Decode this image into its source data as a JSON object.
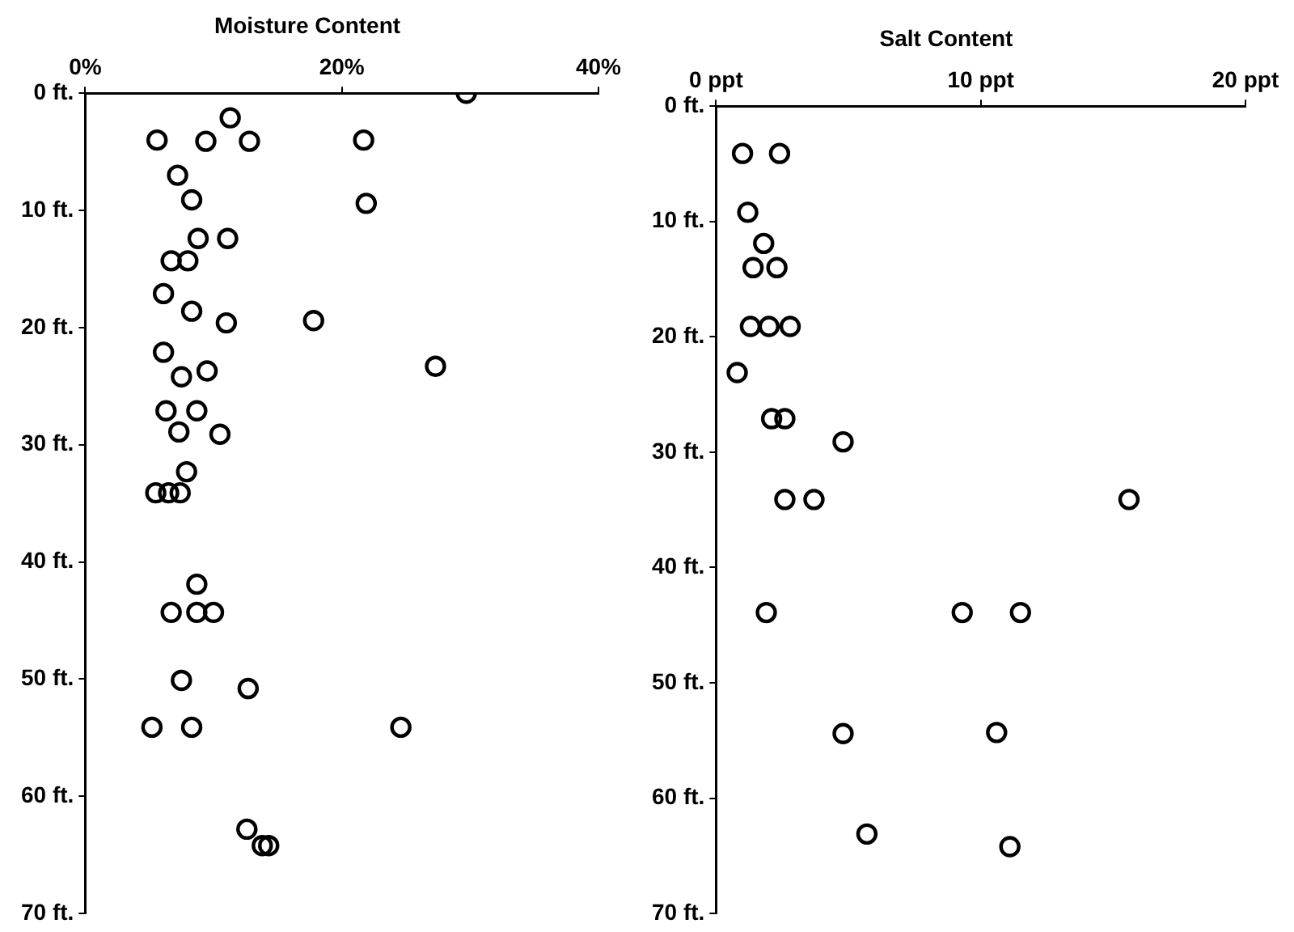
{
  "chart_data": [
    {
      "type": "scatter",
      "title": "Moisture Content",
      "marker": "circle",
      "color": "#000000",
      "grid": false,
      "x": [
        29.7,
        11.3,
        5.6,
        9.4,
        12.8,
        21.7,
        7.2,
        8.3,
        21.9,
        8.8,
        11.1,
        6.7,
        8.0,
        6.1,
        8.3,
        11.0,
        17.8,
        6.1,
        9.5,
        7.5,
        27.3,
        6.3,
        8.7,
        7.3,
        10.5,
        7.9,
        5.5,
        6.5,
        7.4,
        8.7,
        6.7,
        8.7,
        10.0,
        7.5,
        12.7,
        5.2,
        8.3,
        24.6,
        12.6,
        13.8,
        14.3
      ],
      "values": [
        0,
        2.1,
        4.0,
        4.1,
        4.1,
        4.0,
        7.0,
        9.1,
        9.4,
        12.4,
        12.4,
        14.3,
        14.3,
        17.1,
        18.6,
        19.6,
        19.4,
        22.1,
        23.7,
        24.2,
        23.3,
        27.1,
        27.1,
        28.9,
        29.1,
        32.3,
        34.1,
        34.1,
        34.1,
        41.9,
        44.3,
        44.3,
        44.3,
        50.1,
        50.8,
        54.1,
        54.1,
        54.1,
        62.8,
        64.2,
        64.2
      ],
      "xlim": [
        0,
        40
      ],
      "xticks": [
        {
          "value": 0,
          "label": "0%"
        },
        {
          "value": 20,
          "label": "20%"
        },
        {
          "value": 40,
          "label": "40%"
        }
      ],
      "ylim": [
        70,
        0
      ],
      "yticks": [
        {
          "value": 0,
          "label": "0 ft."
        },
        {
          "value": 10,
          "label": "10 ft."
        },
        {
          "value": 20,
          "label": "20 ft."
        },
        {
          "value": 30,
          "label": "30 ft."
        },
        {
          "value": 40,
          "label": "40 ft."
        },
        {
          "value": 50,
          "label": "50 ft."
        },
        {
          "value": 60,
          "label": "60 ft."
        },
        {
          "value": 70,
          "label": "70 ft."
        }
      ]
    },
    {
      "type": "scatter",
      "title": "Salt Content",
      "marker": "circle",
      "color": "#000000",
      "grid": false,
      "x": [
        1.0,
        2.4,
        1.2,
        1.8,
        1.4,
        2.3,
        1.3,
        2.0,
        2.8,
        0.8,
        2.1,
        2.6,
        4.8,
        2.6,
        3.7,
        15.6,
        1.9,
        9.3,
        11.5,
        4.8,
        10.6,
        5.7,
        11.1
      ],
      "values": [
        4.1,
        4.1,
        9.2,
        11.9,
        14.0,
        14.0,
        19.1,
        19.1,
        19.1,
        23.1,
        27.1,
        27.1,
        29.1,
        34.1,
        34.1,
        34.1,
        43.9,
        43.9,
        43.9,
        54.4,
        54.3,
        63.1,
        64.2
      ],
      "xlim": [
        0,
        20
      ],
      "xticks": [
        {
          "value": 0,
          "label": "0 ppt"
        },
        {
          "value": 10,
          "label": "10 ppt"
        },
        {
          "value": 20,
          "label": "20 ppt"
        }
      ],
      "ylim": [
        70,
        0
      ],
      "yticks": [
        {
          "value": 0,
          "label": "0 ft."
        },
        {
          "value": 10,
          "label": "10 ft."
        },
        {
          "value": 20,
          "label": "20 ft."
        },
        {
          "value": 30,
          "label": "30 ft."
        },
        {
          "value": 40,
          "label": "40 ft."
        },
        {
          "value": 50,
          "label": "50 ft."
        },
        {
          "value": 60,
          "label": "60 ft."
        },
        {
          "value": 70,
          "label": "70 ft."
        }
      ]
    }
  ]
}
